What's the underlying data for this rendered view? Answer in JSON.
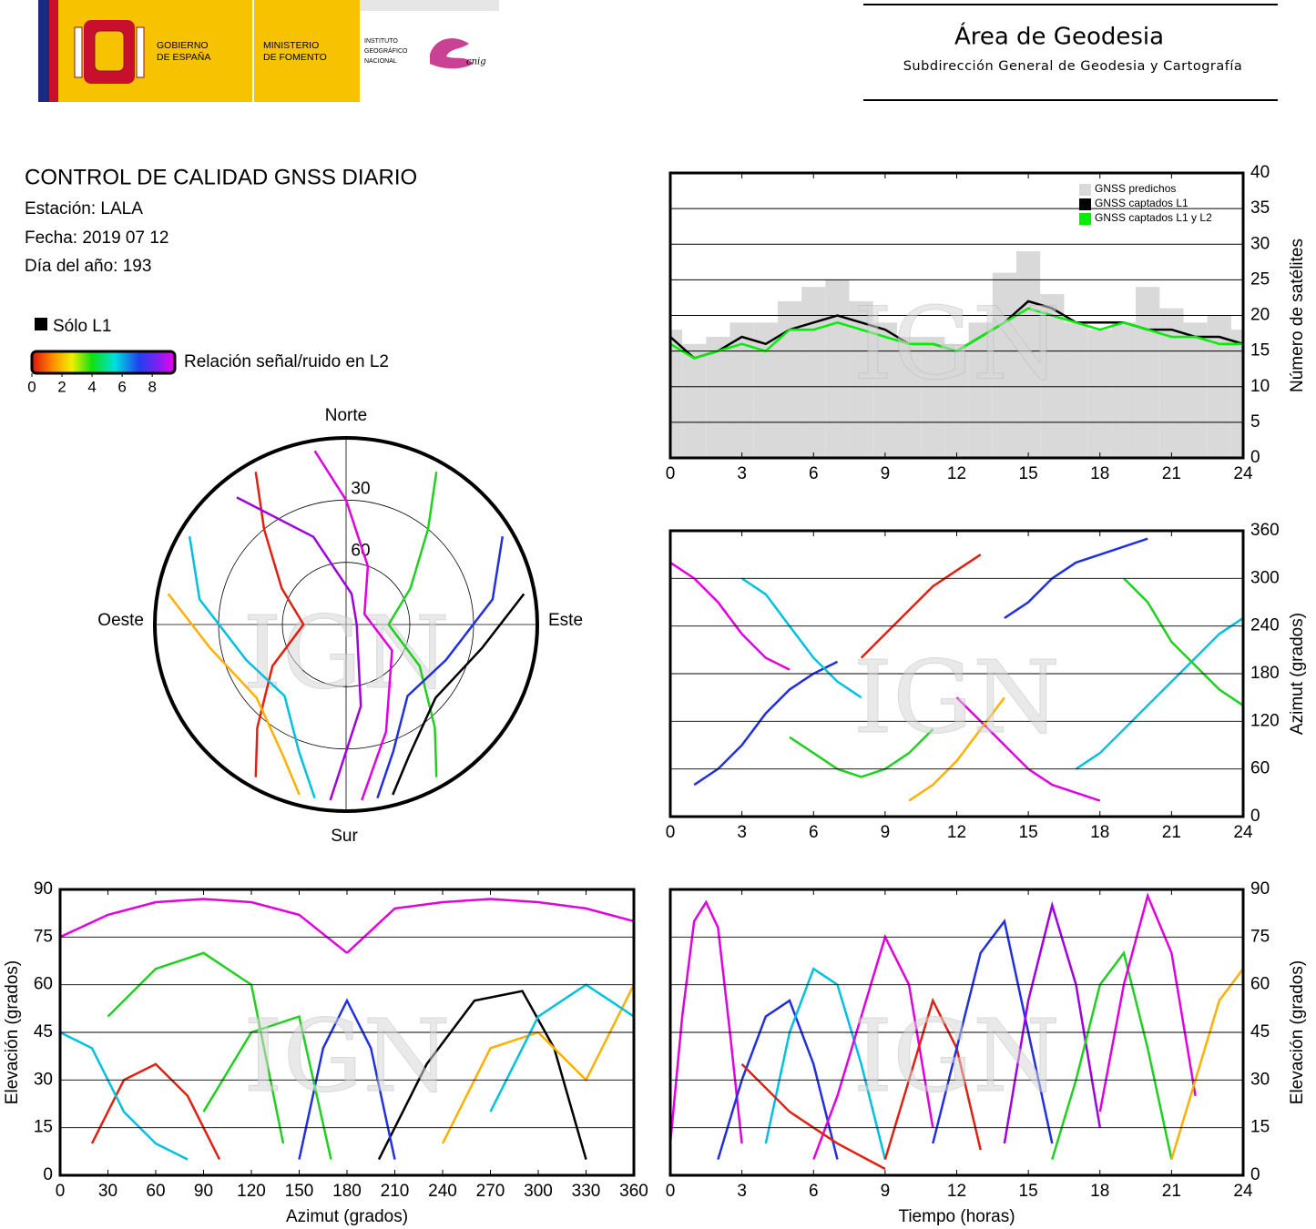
{
  "header": {
    "gov_lines": [
      "GOBIERNO",
      "DE ESPAÑA"
    ],
    "ministry_lines": [
      "MINISTERIO",
      "DE FOMENTO"
    ],
    "institute_lines": [
      "INSTITUTO",
      "GEOGRÁFICO",
      "NACIONAL"
    ],
    "cnig": "cnig",
    "area": "Área de Geodesia",
    "subarea": "Subdirección General de Geodesia y Cartografía"
  },
  "info": {
    "title": "CONTROL DE CALIDAD GNSS DIARIO",
    "station": "Estación: LALA",
    "date": "Fecha: 2019 07 12",
    "doy": "Día del año: 193"
  },
  "legend": {
    "l1_only": "Sólo L1",
    "snr_label": "Relación señal/ruido en L2",
    "snr_lim": [
      0,
      9.2
    ],
    "snr_ticks": [
      0,
      2,
      4,
      6,
      8
    ]
  },
  "chart_data": [
    {
      "type": "polar",
      "directions": {
        "north": "Norte",
        "south": "Sur",
        "east": "Este",
        "west": "Oeste"
      },
      "rlim": [
        90,
        0
      ],
      "rticks": [
        30,
        60
      ],
      "watermark": "IGN",
      "series": [
        {
          "color": "#e02010",
          "x": [
            330,
            320,
            300,
            270,
            240,
            220,
            210
          ],
          "values": [
            5,
            30,
            55,
            70,
            50,
            25,
            5
          ]
        },
        {
          "color": "#20d020",
          "x": [
            30,
            40,
            60,
            90,
            120,
            140,
            150
          ],
          "values": [
            5,
            30,
            55,
            70,
            50,
            25,
            5
          ]
        },
        {
          "color": "#e000e0",
          "x": [
            350,
            0,
            20,
            60,
            120,
            160,
            175
          ],
          "values": [
            5,
            30,
            60,
            80,
            65,
            35,
            5
          ]
        },
        {
          "color": "#00c0e0",
          "x": [
            300,
            280,
            250,
            220,
            200,
            190
          ],
          "values": [
            5,
            20,
            40,
            45,
            25,
            5
          ]
        },
        {
          "color": "#2030e0",
          "x": [
            60,
            80,
            110,
            140,
            160,
            170
          ],
          "values": [
            5,
            20,
            40,
            45,
            25,
            5
          ]
        },
        {
          "color": "#a000e0",
          "x": [
            320,
            340,
            10,
            90,
            170,
            185
          ],
          "values": [
            10,
            45,
            75,
            85,
            50,
            5
          ]
        },
        {
          "color": "#ffb000",
          "x": [
            280,
            260,
            230,
            205,
            195
          ],
          "values": [
            5,
            25,
            35,
            20,
            5
          ]
        },
        {
          "color": "#000000",
          "x": [
            80,
            100,
            130,
            155,
            165
          ],
          "values": [
            5,
            25,
            35,
            20,
            5
          ]
        }
      ]
    },
    {
      "type": "count",
      "y_label": "Número de satélites",
      "y_axis_side": "right",
      "legend": "top-right",
      "grid": true,
      "watermark": "IGN",
      "xlim": [
        0,
        24
      ],
      "xticks": [
        0,
        3,
        6,
        9,
        12,
        15,
        18,
        21,
        24
      ],
      "ylim": [
        0,
        40
      ],
      "yticks": [
        0,
        5,
        10,
        15,
        20,
        25,
        30,
        35,
        40
      ],
      "x": [
        0,
        1,
        2,
        3,
        4,
        5,
        6,
        7,
        8,
        9,
        10,
        11,
        12,
        13,
        14,
        15,
        16,
        17,
        18,
        19,
        20,
        21,
        22,
        23,
        24
      ],
      "series": [
        {
          "name": "GNSS predichos",
          "color": "#d9d9d9",
          "fill": true,
          "values": [
            18,
            16,
            17,
            19,
            19,
            22,
            24,
            25,
            22,
            19,
            17,
            17,
            16,
            19,
            26,
            29,
            23,
            19,
            18,
            19,
            24,
            21,
            19,
            20,
            18
          ]
        },
        {
          "name": "GNSS captados L1",
          "color": "#000000",
          "fill": false,
          "values": [
            17,
            14,
            15,
            17,
            16,
            18,
            19,
            20,
            19,
            18,
            16,
            16,
            15,
            17,
            19,
            22,
            21,
            19,
            19,
            19,
            18,
            18,
            17,
            17,
            16
          ]
        },
        {
          "name": "GNSS captados L1 y L2",
          "color": "#00ee00",
          "fill": false,
          "values": [
            16,
            14,
            15,
            16,
            15,
            18,
            18,
            19,
            18,
            17,
            16,
            16,
            15,
            17,
            19,
            21,
            20,
            19,
            18,
            19,
            18,
            17,
            17,
            16,
            16
          ]
        }
      ]
    },
    {
      "type": "line",
      "y_label": "Azimut (grados)",
      "y_axis_side": "right",
      "grid": true,
      "watermark": "IGN",
      "xlim": [
        0,
        24
      ],
      "xticks": [
        0,
        3,
        6,
        9,
        12,
        15,
        18,
        21,
        24
      ],
      "ylim": [
        0,
        360
      ],
      "yticks": [
        0,
        60,
        120,
        180,
        240,
        300,
        360
      ],
      "series": [
        {
          "color": "#e000e0",
          "x": [
            0,
            1,
            2,
            3,
            4,
            5
          ],
          "values": [
            320,
            300,
            270,
            230,
            200,
            185
          ]
        },
        {
          "color": "#2030e0",
          "x": [
            1,
            2,
            3,
            4,
            5,
            6,
            7
          ],
          "values": [
            40,
            60,
            90,
            130,
            160,
            180,
            195
          ]
        },
        {
          "color": "#00c0e0",
          "x": [
            3,
            4,
            5,
            6,
            7,
            8
          ],
          "values": [
            300,
            280,
            240,
            200,
            170,
            150
          ]
        },
        {
          "color": "#20d020",
          "x": [
            5,
            6,
            7,
            8,
            9,
            10,
            11
          ],
          "values": [
            100,
            80,
            60,
            50,
            60,
            80,
            110
          ]
        },
        {
          "color": "#e02010",
          "x": [
            8,
            9,
            10,
            11,
            12,
            13
          ],
          "values": [
            200,
            230,
            260,
            290,
            310,
            330
          ]
        },
        {
          "color": "#e000e0",
          "x": [
            12,
            13,
            14,
            15,
            16,
            17,
            18
          ],
          "values": [
            150,
            120,
            90,
            60,
            40,
            30,
            20
          ]
        },
        {
          "color": "#2030e0",
          "x": [
            14,
            15,
            16,
            17,
            18,
            19,
            20
          ],
          "values": [
            250,
            270,
            300,
            320,
            330,
            340,
            350
          ]
        },
        {
          "color": "#00c0e0",
          "x": [
            17,
            18,
            19,
            20,
            21,
            22,
            23,
            24
          ],
          "values": [
            60,
            80,
            110,
            140,
            170,
            200,
            230,
            250
          ]
        },
        {
          "color": "#20d020",
          "x": [
            19,
            20,
            21,
            22,
            23,
            24
          ],
          "values": [
            300,
            270,
            220,
            190,
            160,
            140
          ]
        },
        {
          "color": "#ffb000",
          "x": [
            10,
            11,
            12,
            13,
            14
          ],
          "values": [
            20,
            40,
            70,
            110,
            150
          ]
        }
      ]
    },
    {
      "type": "line",
      "x_label": "Azimut (grados)",
      "y_label": "Elevación (grados)",
      "y_axis_side": "left",
      "grid": true,
      "watermark": "IGN",
      "xlim": [
        0,
        360
      ],
      "xticks": [
        0,
        30,
        60,
        90,
        120,
        150,
        180,
        210,
        240,
        270,
        300,
        330,
        360
      ],
      "ylim": [
        0,
        90
      ],
      "yticks": [
        0,
        15,
        30,
        45,
        60,
        75,
        90
      ],
      "series": [
        {
          "color": "#e000e0",
          "x": [
            0,
            30,
            60,
            90,
            120,
            150,
            180
          ],
          "values": [
            75,
            82,
            86,
            87,
            86,
            82,
            70
          ]
        },
        {
          "color": "#e000e0",
          "x": [
            180,
            210,
            240,
            270,
            300,
            330,
            360
          ],
          "values": [
            70,
            84,
            86,
            87,
            86,
            84,
            80
          ]
        },
        {
          "color": "#e02010",
          "x": [
            20,
            40,
            60,
            80,
            100
          ],
          "values": [
            10,
            30,
            35,
            25,
            5
          ]
        },
        {
          "color": "#20d020",
          "x": [
            30,
            60,
            90,
            120,
            140
          ],
          "values": [
            50,
            65,
            70,
            60,
            10
          ]
        },
        {
          "color": "#00c0e0",
          "x": [
            0,
            20,
            40,
            60,
            80
          ],
          "values": [
            45,
            40,
            20,
            10,
            5
          ]
        },
        {
          "color": "#000000",
          "x": [
            200,
            230,
            260,
            290,
            310,
            330
          ],
          "values": [
            5,
            35,
            55,
            58,
            40,
            5
          ]
        },
        {
          "color": "#ffb000",
          "x": [
            240,
            270,
            300,
            330,
            360
          ],
          "values": [
            10,
            40,
            45,
            30,
            60
          ]
        },
        {
          "color": "#2030e0",
          "x": [
            150,
            165,
            180,
            195,
            210
          ],
          "values": [
            5,
            40,
            55,
            40,
            5
          ]
        },
        {
          "color": "#00c0e0",
          "x": [
            270,
            300,
            330,
            345,
            360
          ],
          "values": [
            20,
            50,
            60,
            55,
            50
          ]
        },
        {
          "color": "#20d020",
          "x": [
            90,
            120,
            150,
            170
          ],
          "values": [
            20,
            45,
            50,
            5
          ]
        }
      ]
    },
    {
      "type": "line",
      "x_label": "Tiempo (horas)",
      "y_label": "Elevación (grados)",
      "y_axis_side": "right",
      "grid": true,
      "watermark": "IGN",
      "xlim": [
        0,
        24
      ],
      "xticks": [
        0,
        3,
        6,
        9,
        12,
        15,
        18,
        21,
        24
      ],
      "ylim": [
        0,
        90
      ],
      "yticks": [
        0,
        15,
        30,
        45,
        60,
        75,
        90
      ],
      "series": [
        {
          "color": "#e000e0",
          "x": [
            0,
            0.5,
            1,
            1.5,
            2,
            2.5,
            3
          ],
          "values": [
            10,
            50,
            80,
            86,
            78,
            45,
            10
          ]
        },
        {
          "color": "#2030e0",
          "x": [
            2,
            3,
            4,
            5,
            6,
            7
          ],
          "values": [
            5,
            30,
            50,
            55,
            35,
            5
          ]
        },
        {
          "color": "#00c0e0",
          "x": [
            4,
            5,
            6,
            7,
            8,
            9
          ],
          "values": [
            10,
            45,
            65,
            60,
            35,
            5
          ]
        },
        {
          "color": "#e000e0",
          "x": [
            6,
            7,
            8,
            9,
            10,
            11
          ],
          "values": [
            5,
            25,
            50,
            75,
            60,
            15
          ]
        },
        {
          "color": "#e02010",
          "x": [
            9,
            10,
            11,
            12,
            13
          ],
          "values": [
            5,
            30,
            55,
            40,
            8
          ]
        },
        {
          "color": "#2030e0",
          "x": [
            11,
            12,
            13,
            14,
            15,
            16
          ],
          "values": [
            10,
            40,
            70,
            80,
            45,
            10
          ]
        },
        {
          "color": "#a000e0",
          "x": [
            14,
            15,
            16,
            17,
            18
          ],
          "values": [
            10,
            55,
            85,
            60,
            15
          ]
        },
        {
          "color": "#20d020",
          "x": [
            16,
            17,
            18,
            19,
            20,
            21
          ],
          "values": [
            5,
            30,
            60,
            70,
            40,
            5
          ]
        },
        {
          "color": "#e000e0",
          "x": [
            18,
            19,
            20,
            21,
            22
          ],
          "values": [
            20,
            60,
            88,
            70,
            25
          ]
        },
        {
          "color": "#ffb000",
          "x": [
            21,
            22,
            23,
            24
          ],
          "values": [
            5,
            30,
            55,
            65
          ]
        },
        {
          "color": "#e02010",
          "x": [
            3,
            5,
            7,
            9
          ],
          "values": [
            35,
            20,
            10,
            2
          ]
        }
      ]
    }
  ]
}
